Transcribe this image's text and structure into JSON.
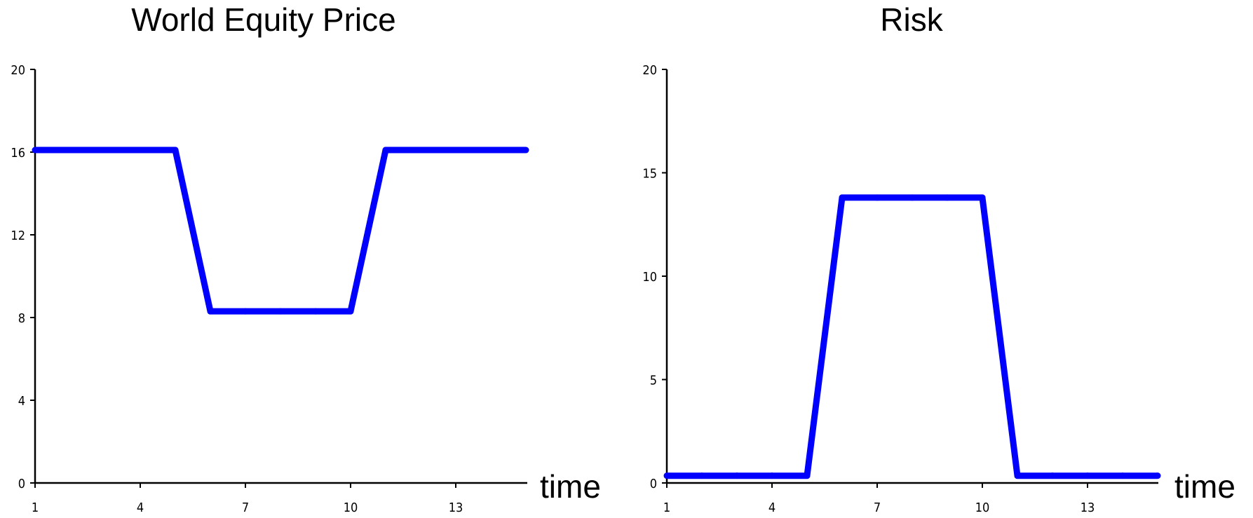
{
  "chart_data": [
    {
      "type": "line",
      "title": "World Equity Price",
      "xlabel": "time",
      "ylabel": "",
      "xlim": [
        1,
        15
      ],
      "ylim": [
        0,
        20
      ],
      "xticks": [
        1,
        4,
        7,
        10,
        13
      ],
      "yticks": [
        0,
        4,
        8,
        12,
        16,
        20
      ],
      "grid": false,
      "series": [
        {
          "color": "#0000ff",
          "x": [
            1,
            2,
            3,
            4,
            5,
            6,
            7,
            8,
            9,
            10,
            11,
            12,
            13,
            14,
            15
          ],
          "values": [
            16.1,
            16.1,
            16.1,
            16.1,
            16.1,
            8.3,
            8.3,
            8.3,
            8.3,
            8.3,
            16.1,
            16.1,
            16.1,
            16.1,
            16.1
          ]
        }
      ]
    },
    {
      "type": "line",
      "title": "Risk",
      "xlabel": "time",
      "ylabel": "",
      "xlim": [
        1,
        15
      ],
      "ylim": [
        0,
        20
      ],
      "xticks": [
        1,
        4,
        7,
        10,
        13
      ],
      "yticks": [
        0,
        5,
        10,
        15,
        20
      ],
      "grid": false,
      "series": [
        {
          "color": "#0000ff",
          "x": [
            1,
            2,
            3,
            4,
            5,
            6,
            7,
            8,
            9,
            10,
            11,
            12,
            13,
            14,
            15
          ],
          "values": [
            0.35,
            0.35,
            0.35,
            0.35,
            0.35,
            13.8,
            13.8,
            13.8,
            13.8,
            13.8,
            0.35,
            0.35,
            0.35,
            0.35,
            0.35
          ]
        }
      ]
    }
  ]
}
